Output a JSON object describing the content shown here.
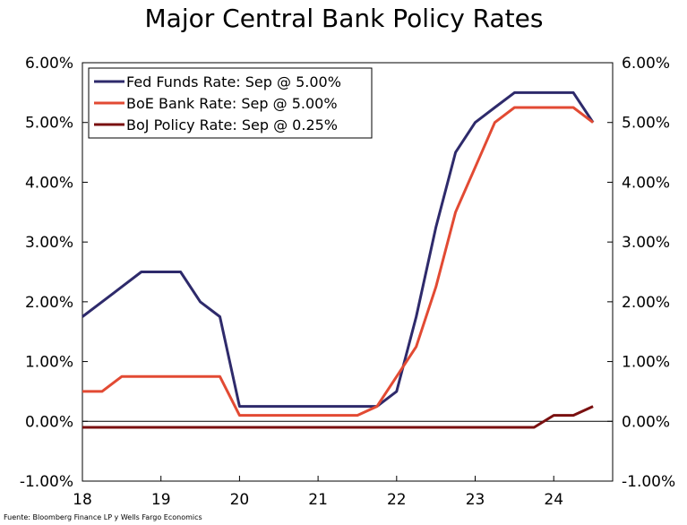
{
  "chart_data": {
    "type": "line",
    "title": "Major Central Bank Policy Rates",
    "xlabel": "",
    "ylabel": "",
    "x_ticks": [
      "18",
      "19",
      "20",
      "21",
      "22",
      "23",
      "24"
    ],
    "x_tick_values": [
      2018,
      2019,
      2020,
      2021,
      2022,
      2023,
      2024
    ],
    "xlim": [
      2018,
      2024.75
    ],
    "ylim": [
      -1,
      6
    ],
    "y_ticks": [
      "6.00%",
      "5.00%",
      "4.00%",
      "3.00%",
      "2.00%",
      "1.00%",
      "0.00%",
      "-1.00%"
    ],
    "y_tick_values": [
      6,
      5,
      4,
      3,
      2,
      1,
      0,
      -1
    ],
    "legend_position": "top-left",
    "series": [
      {
        "name": "Fed Funds Rate: Sep @ 5.00%",
        "color": "#2e2a6b",
        "x": [
          2018.0,
          2018.25,
          2018.5,
          2018.75,
          2019.0,
          2019.25,
          2019.5,
          2019.75,
          2020.0,
          2020.25,
          2020.5,
          2020.75,
          2021.0,
          2021.25,
          2021.5,
          2021.75,
          2022.0,
          2022.25,
          2022.5,
          2022.75,
          2023.0,
          2023.25,
          2023.5,
          2023.75,
          2024.0,
          2024.25,
          2024.5
        ],
        "y": [
          1.75,
          2.0,
          2.25,
          2.5,
          2.5,
          2.5,
          2.0,
          1.75,
          0.25,
          0.25,
          0.25,
          0.25,
          0.25,
          0.25,
          0.25,
          0.25,
          0.5,
          1.75,
          3.25,
          4.5,
          5.0,
          5.25,
          5.5,
          5.5,
          5.5,
          5.5,
          5.0
        ]
      },
      {
        "name": "BoE Bank Rate: Sep @ 5.00%",
        "color": "#e24a33",
        "x": [
          2018.0,
          2018.25,
          2018.5,
          2018.75,
          2019.0,
          2019.25,
          2019.5,
          2019.75,
          2020.0,
          2020.25,
          2020.5,
          2020.75,
          2021.0,
          2021.25,
          2021.5,
          2021.75,
          2022.0,
          2022.25,
          2022.5,
          2022.75,
          2023.0,
          2023.25,
          2023.5,
          2023.75,
          2024.0,
          2024.25,
          2024.5
        ],
        "y": [
          0.5,
          0.5,
          0.75,
          0.75,
          0.75,
          0.75,
          0.75,
          0.75,
          0.1,
          0.1,
          0.1,
          0.1,
          0.1,
          0.1,
          0.1,
          0.25,
          0.75,
          1.25,
          2.25,
          3.5,
          4.25,
          5.0,
          5.25,
          5.25,
          5.25,
          5.25,
          5.0
        ]
      },
      {
        "name": "BoJ Policy Rate: Sep @ 0.25%",
        "color": "#7a1010",
        "x": [
          2018.0,
          2019.0,
          2020.0,
          2021.0,
          2022.0,
          2023.0,
          2023.75,
          2024.0,
          2024.25,
          2024.5
        ],
        "y": [
          -0.1,
          -0.1,
          -0.1,
          -0.1,
          -0.1,
          -0.1,
          -0.1,
          0.1,
          0.1,
          0.25
        ]
      }
    ],
    "source": "Fuente: Bloomberg Finance LP y Wells Fargo Economics"
  }
}
